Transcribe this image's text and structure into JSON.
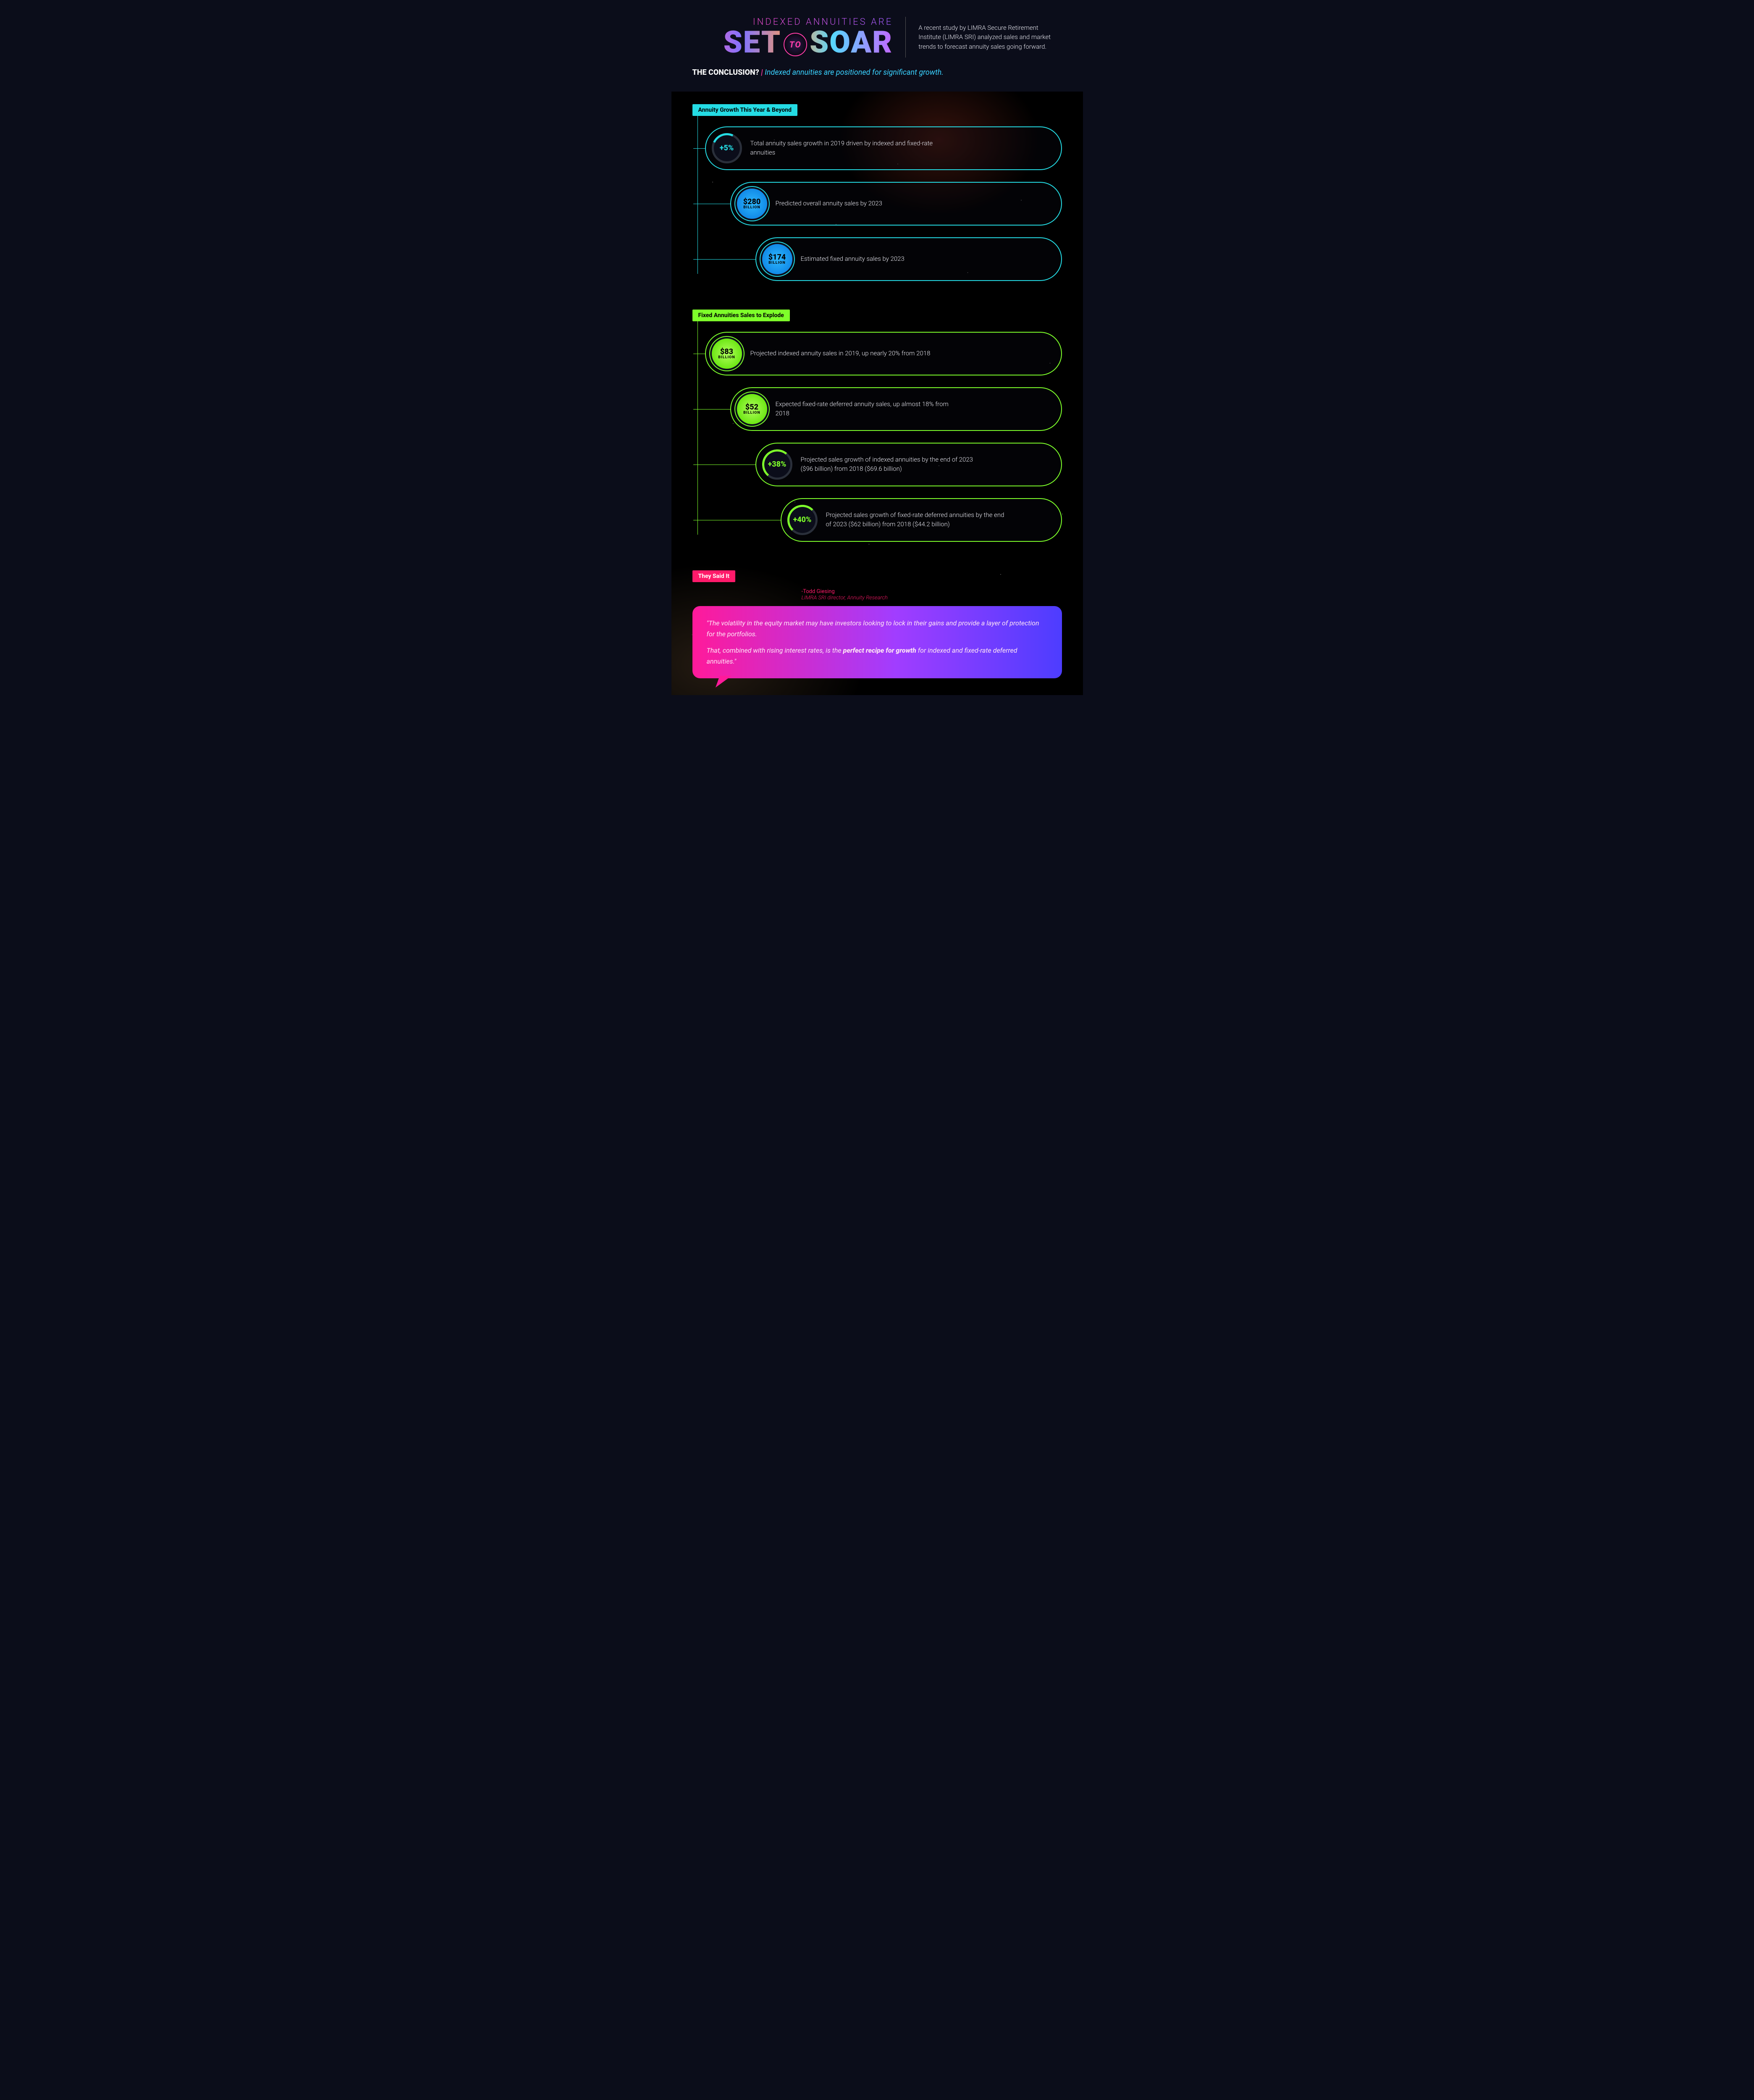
{
  "title": {
    "line1": "INDEXED ANNUITIES ARE",
    "set": "SET",
    "to": "TO",
    "soar": "SOAR"
  },
  "intro": "A recent study by LIMRA Secure Retirement Institute (LIMRA SRI) analyzed sales and market trends to forecast annuity sales going forward.",
  "conclusion": {
    "label": "THE CONCLUSION?",
    "sep": "|",
    "text": "Indexed annuities are positioned for significant growth."
  },
  "colors": {
    "cyan": "#24dce4",
    "green": "#7eff2a",
    "pink": "#ff1a6a",
    "bg": "#0b0d1a"
  },
  "section1": {
    "tag": "Annuity Growth This Year & Beyond",
    "pills": [
      {
        "badge": {
          "kind": "ring-cyan",
          "val": "+5%",
          "unit": ""
        },
        "text": "Total annuity sales growth in 2019 driven by indexed and fixed-rate annuities"
      },
      {
        "badge": {
          "kind": "seal-cyan",
          "val": "$280",
          "unit": "BILLION"
        },
        "text": "Predicted overall annuity sales by 2023"
      },
      {
        "badge": {
          "kind": "seal-cyan",
          "val": "$174",
          "unit": "BILLION"
        },
        "text": "Estimated fixed annuity sales by 2023"
      }
    ]
  },
  "section2": {
    "tag": "Fixed Annuities Sales to Explode",
    "pills": [
      {
        "badge": {
          "kind": "seal-green",
          "val": "$83",
          "unit": "BILLION"
        },
        "text": "Projected indexed annuity sales in 2019, up nearly 20% from 2018"
      },
      {
        "badge": {
          "kind": "seal-green",
          "val": "$52",
          "unit": "BILLION"
        },
        "text": "Expected fixed-rate deferred annuity sales, up almost 18% from 2018"
      },
      {
        "badge": {
          "kind": "ring-green p38",
          "val": "+38%",
          "unit": ""
        },
        "text": "Projected sales growth of indexed annuities by the end of 2023 ($96 billion) from 2018 ($69.6 billion)"
      },
      {
        "badge": {
          "kind": "ring-green p40",
          "val": "+40%",
          "unit": ""
        },
        "text": "Projected sales growth of fixed-rate deferred annuities by the end of 2023 ($62 billion) from 2018 ($44.2 billion)"
      }
    ]
  },
  "section3": {
    "tag": "They Said It",
    "author_name": "-Todd Giesing",
    "author_role": "LIMRA SRI director, Annuity Research",
    "quote_p1": "\"The volatility in the equity market may have investors looking to lock in their gains and provide a layer of protection for the portfolios.",
    "quote_p2_prefix": "That, combined with rising interest rates, is the ",
    "quote_p2_strong": "perfect recipe for growth",
    "quote_p2_suffix": " for indexed and fixed-rate deferred annuities.\""
  }
}
